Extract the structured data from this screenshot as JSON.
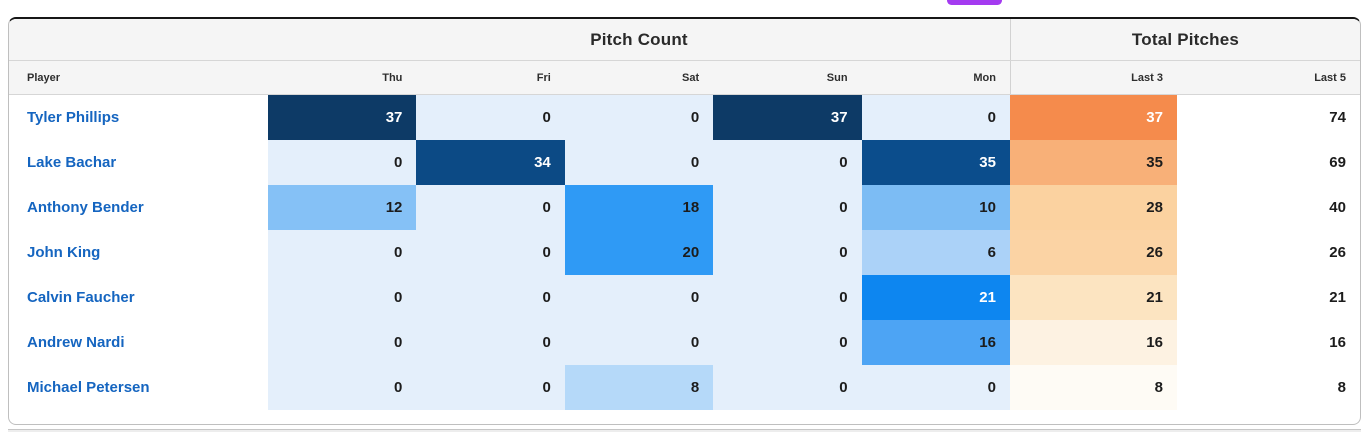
{
  "widget": {
    "pill_color": "#a43bf0",
    "link_color": "#1565c0",
    "heat_zero_blue": "#e4effb",
    "accent_navy": "#0d3a66",
    "accent_orange": "#f58b4c"
  },
  "table": {
    "group_headers": {
      "pitch_count": "Pitch Count",
      "total_pitches": "Total Pitches"
    },
    "columns": {
      "player": "Player",
      "thu": "Thu",
      "fri": "Fri",
      "sat": "Sat",
      "sun": "Sun",
      "mon": "Mon",
      "last3": "Last 3",
      "last5": "Last 5"
    },
    "rows": [
      {
        "player": "Tyler Phillips",
        "cells": [
          {
            "v": "37",
            "bg": "#0d3a66",
            "fg": "#ffffff"
          },
          {
            "v": "0",
            "bg": "#e4effb",
            "fg": "#1c1c1c"
          },
          {
            "v": "0",
            "bg": "#e4effb",
            "fg": "#1c1c1c"
          },
          {
            "v": "37",
            "bg": "#0d3a66",
            "fg": "#ffffff"
          },
          {
            "v": "0",
            "bg": "#e4effb",
            "fg": "#1c1c1c"
          },
          {
            "v": "37",
            "bg": "#f58b4c",
            "fg": "#ffffff"
          }
        ],
        "last5": "74"
      },
      {
        "player": "Lake Bachar",
        "cells": [
          {
            "v": "0",
            "bg": "#e4effb",
            "fg": "#1c1c1c"
          },
          {
            "v": "34",
            "bg": "#0c4a85",
            "fg": "#ffffff"
          },
          {
            "v": "0",
            "bg": "#e4effb",
            "fg": "#1c1c1c"
          },
          {
            "v": "0",
            "bg": "#e4effb",
            "fg": "#1c1c1c"
          },
          {
            "v": "35",
            "bg": "#0b4d8c",
            "fg": "#ffffff"
          },
          {
            "v": "35",
            "bg": "#f8b078",
            "fg": "#1c1c1c"
          }
        ],
        "last5": "69"
      },
      {
        "player": "Anthony Bender",
        "cells": [
          {
            "v": "12",
            "bg": "#85c1f6",
            "fg": "#1c1c1c"
          },
          {
            "v": "0",
            "bg": "#e4effb",
            "fg": "#1c1c1c"
          },
          {
            "v": "18",
            "bg": "#2f9af5",
            "fg": "#1c1c1c"
          },
          {
            "v": "0",
            "bg": "#e4effb",
            "fg": "#1c1c1c"
          },
          {
            "v": "10",
            "bg": "#7cbcf4",
            "fg": "#1c1c1c"
          },
          {
            "v": "28",
            "bg": "#fbd2a0",
            "fg": "#1c1c1c"
          }
        ],
        "last5": "40"
      },
      {
        "player": "John King",
        "cells": [
          {
            "v": "0",
            "bg": "#e4effb",
            "fg": "#1c1c1c"
          },
          {
            "v": "0",
            "bg": "#e4effb",
            "fg": "#1c1c1c"
          },
          {
            "v": "20",
            "bg": "#2f9af5",
            "fg": "#1c1c1c"
          },
          {
            "v": "0",
            "bg": "#e4effb",
            "fg": "#1c1c1c"
          },
          {
            "v": "6",
            "bg": "#abd2f8",
            "fg": "#1c1c1c"
          },
          {
            "v": "26",
            "bg": "#fbd3a4",
            "fg": "#1c1c1c"
          }
        ],
        "last5": "26"
      },
      {
        "player": "Calvin Faucher",
        "cells": [
          {
            "v": "0",
            "bg": "#e4effb",
            "fg": "#1c1c1c"
          },
          {
            "v": "0",
            "bg": "#e4effb",
            "fg": "#1c1c1c"
          },
          {
            "v": "0",
            "bg": "#e4effb",
            "fg": "#1c1c1c"
          },
          {
            "v": "0",
            "bg": "#e4effb",
            "fg": "#1c1c1c"
          },
          {
            "v": "21",
            "bg": "#0d86f0",
            "fg": "#ffffff"
          },
          {
            "v": "21",
            "bg": "#fce4c1",
            "fg": "#1c1c1c"
          }
        ],
        "last5": "21"
      },
      {
        "player": "Andrew Nardi",
        "cells": [
          {
            "v": "0",
            "bg": "#e4effb",
            "fg": "#1c1c1c"
          },
          {
            "v": "0",
            "bg": "#e4effb",
            "fg": "#1c1c1c"
          },
          {
            "v": "0",
            "bg": "#e4effb",
            "fg": "#1c1c1c"
          },
          {
            "v": "0",
            "bg": "#e4effb",
            "fg": "#1c1c1c"
          },
          {
            "v": "16",
            "bg": "#4da4f4",
            "fg": "#1c1c1c"
          },
          {
            "v": "16",
            "bg": "#fdf2e2",
            "fg": "#1c1c1c"
          }
        ],
        "last5": "16"
      },
      {
        "player": "Michael Petersen",
        "cells": [
          {
            "v": "0",
            "bg": "#e4effb",
            "fg": "#1c1c1c"
          },
          {
            "v": "0",
            "bg": "#e4effb",
            "fg": "#1c1c1c"
          },
          {
            "v": "8",
            "bg": "#b5d9f9",
            "fg": "#1c1c1c"
          },
          {
            "v": "0",
            "bg": "#e4effb",
            "fg": "#1c1c1c"
          },
          {
            "v": "0",
            "bg": "#e4effb",
            "fg": "#1c1c1c"
          },
          {
            "v": "8",
            "bg": "#fefbf5",
            "fg": "#1c1c1c"
          }
        ],
        "last5": "8"
      }
    ]
  }
}
